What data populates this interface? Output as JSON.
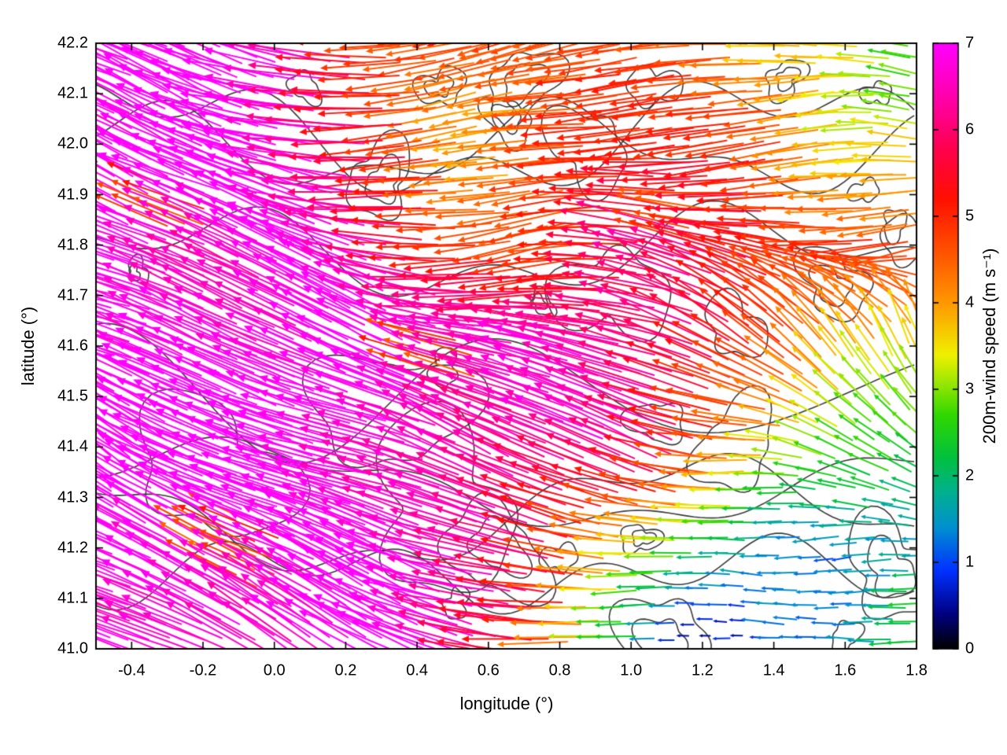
{
  "chart_data": {
    "type": "quiver",
    "title": "",
    "xlabel": "longitude (°)",
    "ylabel": "latitude (°)",
    "xlim": [
      -0.5,
      1.8
    ],
    "ylim": [
      41.0,
      42.2
    ],
    "xticks": [
      -0.4,
      -0.2,
      0.0,
      0.2,
      0.4,
      0.6,
      0.8,
      1.0,
      1.2,
      1.4,
      1.6,
      1.8
    ],
    "xtick_labels": [
      "-0.4",
      "-0.2",
      "0.0",
      "0.2",
      "0.4",
      "0.6",
      "0.8",
      "1.0",
      "1.2",
      "1.4",
      "1.6",
      "1.8"
    ],
    "yticks": [
      41.0,
      41.1,
      41.2,
      41.3,
      41.4,
      41.5,
      41.6,
      41.7,
      41.8,
      41.9,
      42.0,
      42.1,
      42.2
    ],
    "ytick_labels": [
      "41.0",
      "41.1",
      "41.2",
      "41.3",
      "41.4",
      "41.5",
      "41.6",
      "41.7",
      "41.8",
      "41.9",
      "42.0",
      "42.1",
      "42.2"
    ],
    "grid": false,
    "colorbar": {
      "label": "200m-wind speed (m s⁻¹)",
      "range": [
        0,
        7
      ],
      "ticks": [
        0,
        1,
        2,
        3,
        4,
        5,
        6,
        7
      ],
      "tick_labels": [
        "0",
        "1",
        "2",
        "3",
        "4",
        "5",
        "6",
        "7"
      ],
      "stops": [
        [
          0.0,
          "#000000"
        ],
        [
          0.4,
          "#000080"
        ],
        [
          0.9,
          "#0030ff"
        ],
        [
          1.4,
          "#0090d0"
        ],
        [
          1.8,
          "#00b090"
        ],
        [
          2.2,
          "#00c040"
        ],
        [
          2.7,
          "#30d800"
        ],
        [
          3.1,
          "#a0e800"
        ],
        [
          3.4,
          "#f0f000"
        ],
        [
          4.0,
          "#ff9800"
        ],
        [
          4.6,
          "#ff5000"
        ],
        [
          5.2,
          "#ff1000"
        ],
        [
          5.8,
          "#ff0050"
        ],
        [
          6.3,
          "#ff00a0"
        ],
        [
          7.0,
          "#ff00ff"
        ]
      ]
    },
    "wind_field": {
      "comment_units": "speed in m/s, direction in degrees counterclockwise from east (direction arrow points toward)",
      "grid_lons": [
        -0.5,
        -0.29,
        -0.08,
        0.13,
        0.34,
        0.55,
        0.76,
        0.97,
        1.18,
        1.39,
        1.6,
        1.8
      ],
      "grid_lats": [
        41.0,
        41.2,
        41.4,
        41.6,
        41.8,
        42.0,
        42.2
      ],
      "speed": [
        [
          7,
          7,
          7,
          7,
          7,
          6.5,
          5,
          2.5,
          1,
          1,
          1.2,
          2
        ],
        [
          7,
          7,
          7,
          7,
          7,
          6.5,
          6,
          4,
          2.5,
          1.5,
          1.2,
          1.5
        ],
        [
          7,
          7,
          7,
          7,
          7,
          7,
          6.5,
          6.5,
          5,
          3.5,
          3,
          3
        ],
        [
          7,
          7,
          7,
          7,
          7,
          6.5,
          6.5,
          6.5,
          6.5,
          5,
          4,
          3.5
        ],
        [
          7,
          7,
          7,
          7,
          6.5,
          4.5,
          4.5,
          5.5,
          6.5,
          6,
          4.5,
          4.5
        ],
        [
          7,
          7,
          7,
          7,
          5.5,
          4.5,
          4.5,
          4.5,
          5,
          4.5,
          4,
          4
        ],
        [
          7,
          7,
          7,
          6.5,
          5,
          4.5,
          4.5,
          5,
          4.5,
          4,
          3.5,
          2.5
        ]
      ],
      "direction_deg": [
        [
          152,
          153,
          154,
          155,
          157,
          162,
          170,
          178,
          183,
          185,
          184,
          180
        ],
        [
          153,
          154,
          155,
          156,
          158,
          162,
          168,
          175,
          180,
          182,
          185,
          183
        ],
        [
          154,
          155,
          156,
          157,
          158,
          160,
          162,
          160,
          165,
          170,
          150,
          140
        ],
        [
          155,
          155,
          156,
          158,
          160,
          162,
          165,
          162,
          160,
          150,
          125,
          110
        ],
        [
          156,
          156,
          157,
          160,
          170,
          185,
          190,
          175,
          165,
          170,
          185,
          190
        ],
        [
          158,
          158,
          158,
          162,
          180,
          190,
          195,
          190,
          185,
          185,
          180,
          175
        ],
        [
          160,
          160,
          158,
          165,
          185,
          190,
          195,
          190,
          185,
          180,
          175,
          170
        ]
      ]
    },
    "contours": {
      "description": "terrain/orography contour lines",
      "color": "#3a3a3a",
      "count": 30
    }
  }
}
